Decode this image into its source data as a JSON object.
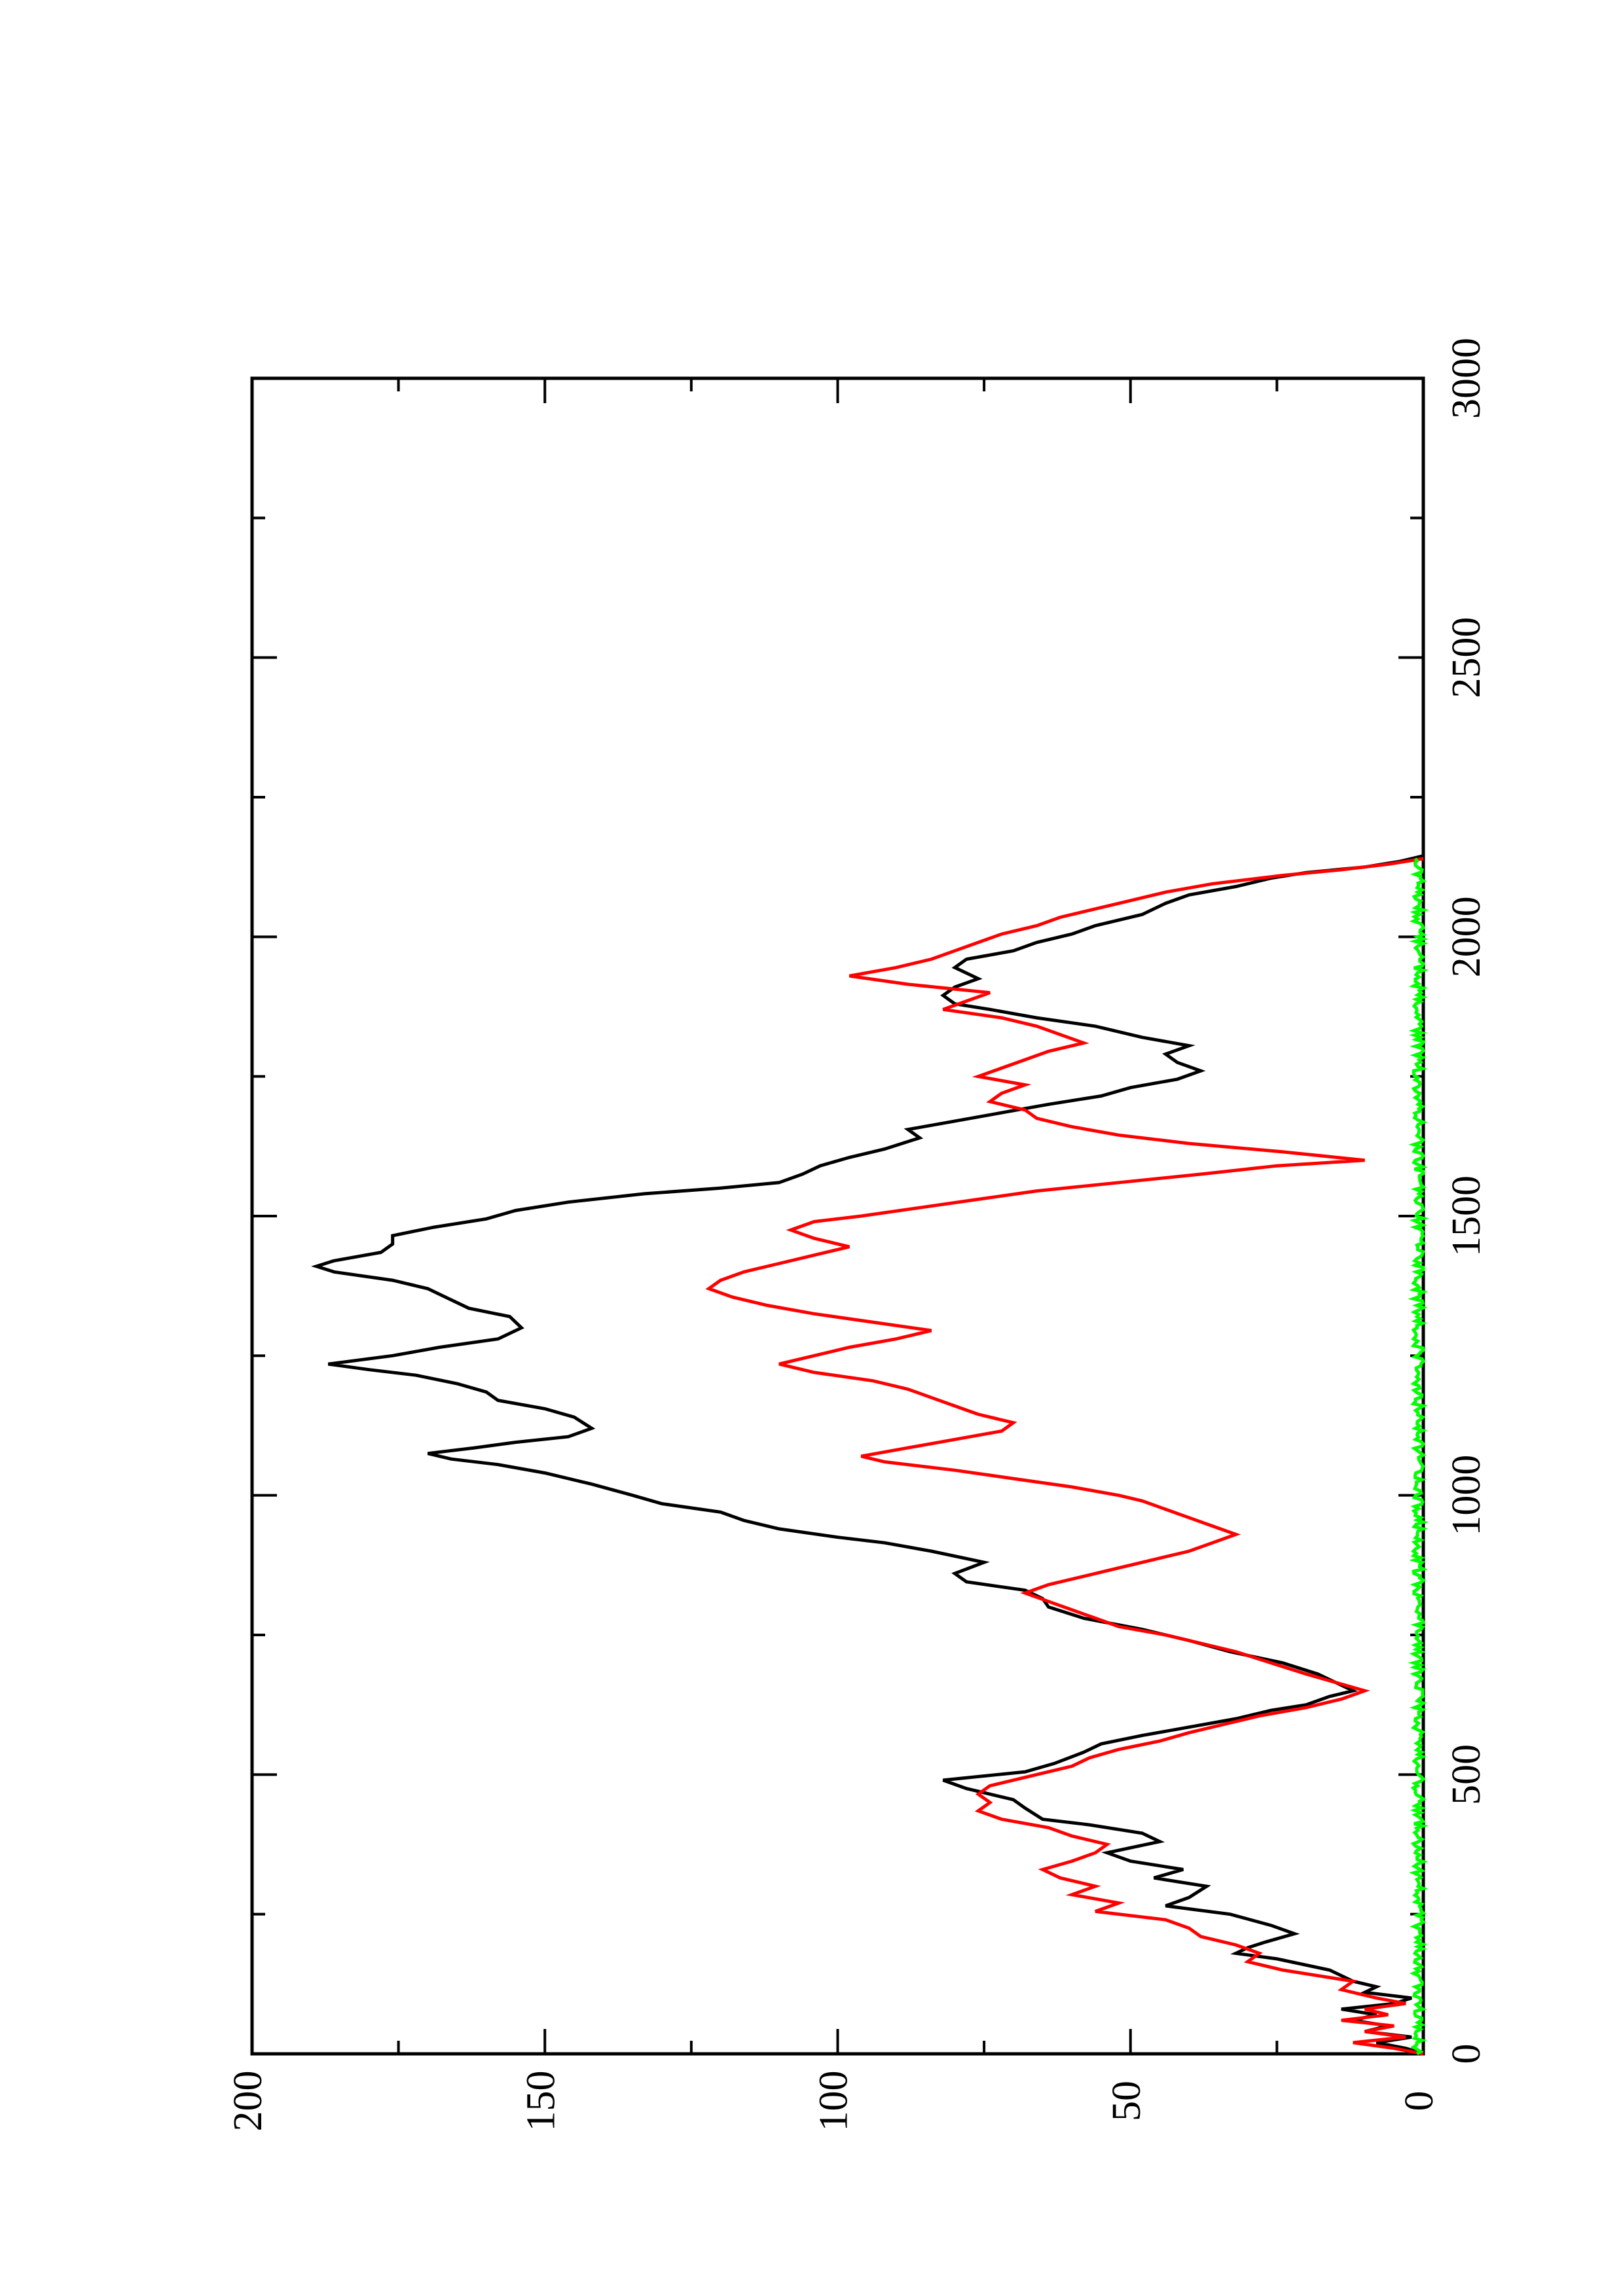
{
  "chart_data": {
    "type": "line",
    "title": "",
    "xlabel": "",
    "ylabel": "",
    "orientation": "rotated-90-counterclockwise",
    "xlim": [
      0,
      3000
    ],
    "ylim": [
      0,
      200
    ],
    "x_ticks": [
      0,
      500,
      1000,
      1500,
      2000,
      2500,
      3000
    ],
    "x_tick_labels": [
      "0",
      "500",
      "1000",
      "1500",
      "2000",
      "2500",
      "3000"
    ],
    "y_ticks": [
      0,
      50,
      100,
      150,
      200
    ],
    "y_tick_labels": [
      "0",
      "50",
      "100",
      "150",
      "200"
    ],
    "x_minor_ticks": [
      250,
      750,
      1250,
      1750,
      2250,
      2750
    ],
    "y_minor_ticks": [
      25,
      75,
      125,
      175
    ],
    "grid": false,
    "legend": "none",
    "series": [
      {
        "color": "#000000",
        "points": [
          [
            0,
            0
          ],
          [
            10,
            3
          ],
          [
            20,
            8
          ],
          [
            30,
            2
          ],
          [
            40,
            10
          ],
          [
            50,
            6
          ],
          [
            60,
            12
          ],
          [
            70,
            8
          ],
          [
            80,
            14
          ],
          [
            90,
            5
          ],
          [
            100,
            2
          ],
          [
            110,
            10
          ],
          [
            120,
            8
          ],
          [
            130,
            12
          ],
          [
            150,
            16
          ],
          [
            170,
            25
          ],
          [
            180,
            32
          ],
          [
            190,
            30
          ],
          [
            200,
            27
          ],
          [
            215,
            22
          ],
          [
            230,
            26
          ],
          [
            250,
            33
          ],
          [
            265,
            44
          ],
          [
            280,
            40
          ],
          [
            300,
            37
          ],
          [
            315,
            46
          ],
          [
            330,
            41
          ],
          [
            345,
            50
          ],
          [
            360,
            54
          ],
          [
            380,
            45
          ],
          [
            395,
            48
          ],
          [
            410,
            57
          ],
          [
            420,
            65
          ],
          [
            440,
            68
          ],
          [
            455,
            70
          ],
          [
            465,
            74
          ],
          [
            475,
            78
          ],
          [
            490,
            82
          ],
          [
            505,
            68
          ],
          [
            520,
            63
          ],
          [
            540,
            58
          ],
          [
            555,
            55
          ],
          [
            570,
            48
          ],
          [
            585,
            40
          ],
          [
            600,
            32
          ],
          [
            615,
            26
          ],
          [
            625,
            20
          ],
          [
            640,
            16
          ],
          [
            650,
            12
          ],
          [
            660,
            14
          ],
          [
            680,
            18
          ],
          [
            700,
            24
          ],
          [
            720,
            33
          ],
          [
            740,
            40
          ],
          [
            760,
            48
          ],
          [
            780,
            58
          ],
          [
            800,
            64
          ],
          [
            815,
            65
          ],
          [
            830,
            68
          ],
          [
            845,
            78
          ],
          [
            860,
            80
          ],
          [
            880,
            75
          ],
          [
            900,
            84
          ],
          [
            915,
            92
          ],
          [
            925,
            100
          ],
          [
            940,
            110
          ],
          [
            955,
            116
          ],
          [
            970,
            120
          ],
          [
            985,
            130
          ],
          [
            1000,
            135
          ],
          [
            1020,
            142
          ],
          [
            1040,
            150
          ],
          [
            1055,
            158
          ],
          [
            1065,
            166
          ],
          [
            1075,
            170
          ],
          [
            1085,
            162
          ],
          [
            1095,
            155
          ],
          [
            1105,
            146
          ],
          [
            1120,
            142
          ],
          [
            1140,
            145
          ],
          [
            1155,
            150
          ],
          [
            1170,
            158
          ],
          [
            1185,
            160
          ],
          [
            1200,
            165
          ],
          [
            1215,
            172
          ],
          [
            1225,
            180
          ],
          [
            1235,
            187
          ],
          [
            1250,
            176
          ],
          [
            1265,
            168
          ],
          [
            1280,
            158
          ],
          [
            1300,
            154
          ],
          [
            1320,
            156
          ],
          [
            1335,
            163
          ],
          [
            1355,
            167
          ],
          [
            1370,
            170
          ],
          [
            1385,
            176
          ],
          [
            1400,
            186
          ],
          [
            1410,
            189
          ],
          [
            1420,
            186
          ],
          [
            1435,
            178
          ],
          [
            1450,
            176
          ],
          [
            1465,
            176
          ],
          [
            1480,
            169
          ],
          [
            1495,
            160
          ],
          [
            1510,
            155
          ],
          [
            1525,
            146
          ],
          [
            1540,
            133
          ],
          [
            1550,
            120
          ],
          [
            1560,
            110
          ],
          [
            1575,
            106
          ],
          [
            1590,
            103
          ],
          [
            1605,
            98
          ],
          [
            1620,
            92
          ],
          [
            1640,
            86
          ],
          [
            1655,
            88
          ],
          [
            1670,
            80
          ],
          [
            1685,
            72
          ],
          [
            1700,
            64
          ],
          [
            1715,
            55
          ],
          [
            1730,
            50
          ],
          [
            1745,
            42
          ],
          [
            1760,
            38
          ],
          [
            1775,
            42
          ],
          [
            1790,
            44
          ],
          [
            1805,
            40
          ],
          [
            1820,
            48
          ],
          [
            1840,
            56
          ],
          [
            1855,
            66
          ],
          [
            1870,
            74
          ],
          [
            1880,
            80
          ],
          [
            1895,
            82
          ],
          [
            1910,
            80
          ],
          [
            1925,
            76
          ],
          [
            1945,
            80
          ],
          [
            1960,
            78
          ],
          [
            1975,
            70
          ],
          [
            1990,
            66
          ],
          [
            2005,
            60
          ],
          [
            2020,
            56
          ],
          [
            2040,
            48
          ],
          [
            2060,
            44
          ],
          [
            2075,
            40
          ],
          [
            2090,
            32
          ],
          [
            2105,
            26
          ],
          [
            2115,
            20
          ],
          [
            2125,
            10
          ],
          [
            2135,
            4
          ],
          [
            2145,
            0
          ]
        ]
      },
      {
        "color": "#ff0000",
        "points": [
          [
            0,
            0
          ],
          [
            10,
            5
          ],
          [
            20,
            12
          ],
          [
            30,
            3
          ],
          [
            40,
            10
          ],
          [
            50,
            5
          ],
          [
            60,
            14
          ],
          [
            70,
            6
          ],
          [
            80,
            10
          ],
          [
            90,
            3
          ],
          [
            100,
            8
          ],
          [
            115,
            14
          ],
          [
            130,
            12
          ],
          [
            150,
            24
          ],
          [
            165,
            30
          ],
          [
            180,
            28
          ],
          [
            195,
            32
          ],
          [
            210,
            38
          ],
          [
            225,
            40
          ],
          [
            240,
            44
          ],
          [
            255,
            56
          ],
          [
            270,
            52
          ],
          [
            285,
            60
          ],
          [
            300,
            56
          ],
          [
            315,
            62
          ],
          [
            330,
            65
          ],
          [
            345,
            60
          ],
          [
            360,
            56
          ],
          [
            375,
            54
          ],
          [
            390,
            60
          ],
          [
            405,
            64
          ],
          [
            420,
            72
          ],
          [
            435,
            76
          ],
          [
            450,
            74
          ],
          [
            465,
            76
          ],
          [
            480,
            74
          ],
          [
            500,
            66
          ],
          [
            515,
            60
          ],
          [
            530,
            57
          ],
          [
            545,
            52
          ],
          [
            560,
            45
          ],
          [
            575,
            40
          ],
          [
            590,
            34
          ],
          [
            605,
            28
          ],
          [
            620,
            20
          ],
          [
            635,
            14
          ],
          [
            650,
            10
          ],
          [
            665,
            15
          ],
          [
            680,
            20
          ],
          [
            700,
            26
          ],
          [
            720,
            32
          ],
          [
            735,
            38
          ],
          [
            750,
            44
          ],
          [
            765,
            52
          ],
          [
            780,
            56
          ],
          [
            795,
            60
          ],
          [
            810,
            64
          ],
          [
            825,
            68
          ],
          [
            840,
            64
          ],
          [
            855,
            58
          ],
          [
            870,
            52
          ],
          [
            885,
            46
          ],
          [
            900,
            40
          ],
          [
            915,
            36
          ],
          [
            930,
            32
          ],
          [
            945,
            36
          ],
          [
            960,
            40
          ],
          [
            975,
            44
          ],
          [
            990,
            48
          ],
          [
            1000,
            52
          ],
          [
            1015,
            60
          ],
          [
            1030,
            70
          ],
          [
            1045,
            80
          ],
          [
            1060,
            92
          ],
          [
            1070,
            96
          ],
          [
            1085,
            88
          ],
          [
            1100,
            80
          ],
          [
            1115,
            72
          ],
          [
            1130,
            70
          ],
          [
            1145,
            76
          ],
          [
            1160,
            80
          ],
          [
            1175,
            84
          ],
          [
            1190,
            88
          ],
          [
            1205,
            94
          ],
          [
            1220,
            104
          ],
          [
            1235,
            110
          ],
          [
            1250,
            104
          ],
          [
            1265,
            98
          ],
          [
            1280,
            90
          ],
          [
            1295,
            84
          ],
          [
            1310,
            94
          ],
          [
            1325,
            104
          ],
          [
            1340,
            112
          ],
          [
            1355,
            118
          ],
          [
            1370,
            122
          ],
          [
            1385,
            120
          ],
          [
            1400,
            116
          ],
          [
            1415,
            110
          ],
          [
            1430,
            104
          ],
          [
            1445,
            98
          ],
          [
            1460,
            104
          ],
          [
            1475,
            108
          ],
          [
            1490,
            104
          ],
          [
            1500,
            96
          ],
          [
            1515,
            86
          ],
          [
            1530,
            76
          ],
          [
            1545,
            66
          ],
          [
            1560,
            52
          ],
          [
            1575,
            38
          ],
          [
            1590,
            25
          ],
          [
            1600,
            10
          ],
          [
            1615,
            24
          ],
          [
            1630,
            40
          ],
          [
            1645,
            52
          ],
          [
            1660,
            60
          ],
          [
            1675,
            66
          ],
          [
            1690,
            68
          ],
          [
            1705,
            74
          ],
          [
            1720,
            72
          ],
          [
            1735,
            68
          ],
          [
            1750,
            76
          ],
          [
            1765,
            72
          ],
          [
            1780,
            68
          ],
          [
            1795,
            64
          ],
          [
            1810,
            58
          ],
          [
            1825,
            62
          ],
          [
            1840,
            66
          ],
          [
            1855,
            72
          ],
          [
            1870,
            82
          ],
          [
            1885,
            78
          ],
          [
            1900,
            74
          ],
          [
            1915,
            88
          ],
          [
            1930,
            98
          ],
          [
            1945,
            90
          ],
          [
            1960,
            84
          ],
          [
            1975,
            80
          ],
          [
            1990,
            76
          ],
          [
            2005,
            72
          ],
          [
            2020,
            66
          ],
          [
            2035,
            62
          ],
          [
            2050,
            56
          ],
          [
            2065,
            50
          ],
          [
            2080,
            44
          ],
          [
            2095,
            36
          ],
          [
            2110,
            24
          ],
          [
            2120,
            14
          ],
          [
            2130,
            6
          ],
          [
            2140,
            0
          ]
        ]
      },
      {
        "color": "#00ff00",
        "style": "noise-band",
        "baseline": 0.8,
        "amplitude": 0.9,
        "x_range": [
          0,
          2140
        ]
      }
    ]
  }
}
